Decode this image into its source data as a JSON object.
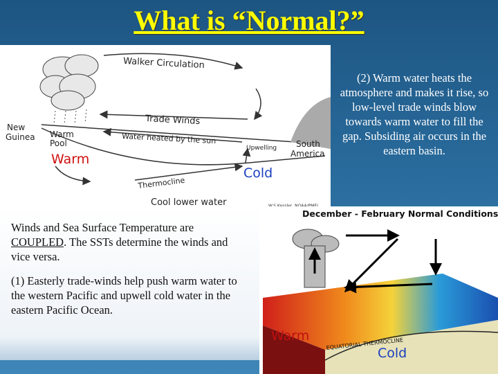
{
  "header": {
    "title": "What is “Normal?”"
  },
  "top_diagram": {
    "labels": {
      "walker": "Walker Circulation",
      "trade": "Trade Winds",
      "new_guinea_1": "New",
      "new_guinea_2": "Guinea",
      "warm_pool_1": "Warm",
      "warm_pool_2": "Pool",
      "heated": "Water heated by the sun",
      "upwelling": "Upwelling",
      "south_america_1": "South",
      "south_america_2": "America",
      "thermocline": "Thermocline",
      "cool": "Cool lower water",
      "credit": "W.S.Kessler, NOAA/PMEL"
    },
    "warm": "Warm",
    "cold": "Cold"
  },
  "right_text": "(2)  Warm water heats the atmosphere and makes it rise, so low-level trade winds blow towards warm water to fill the gap. Subsiding air occurs in the eastern basin.",
  "left_text": {
    "coupled": [
      "Winds and Sea Surface Temperature are ",
      "COUPLED",
      ".  The SSTs determine the winds and vice versa."
    ],
    "point1": "(1) Easterly trade-winds help push warm water to the western Pacific and upwell cold water in the eastern Pacific Ocean."
  },
  "bottom_diagram": {
    "title": "December - February Normal Conditions",
    "thermocline": "EQUATORIAL THERMOCLINE",
    "warm": "Warm",
    "cold": "Cold"
  }
}
